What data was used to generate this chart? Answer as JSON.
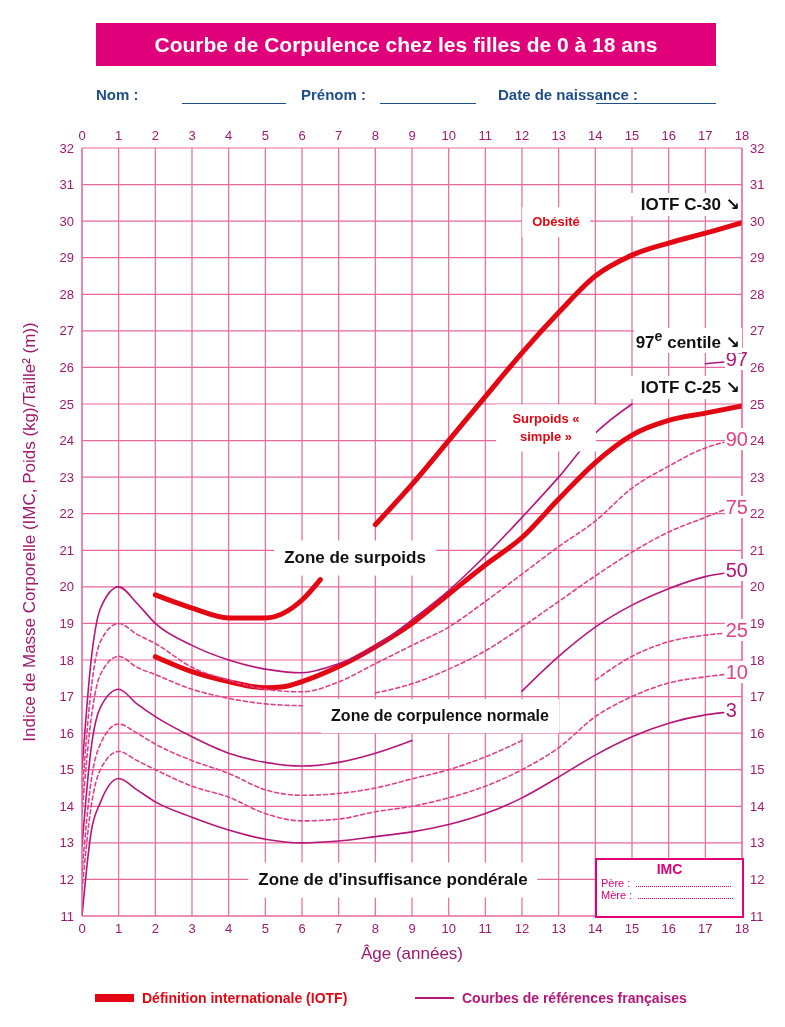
{
  "chart_data": {
    "type": "line",
    "title": "Courbe de Corpulence chez les filles de 0 à 18 ans",
    "xlabel": "Âge (années)",
    "ylabel": "Indice de Masse Corporelle  (IMC, Poids (kg)/Taille² (m))",
    "xlim": [
      0,
      18
    ],
    "xticks": [
      0,
      1,
      2,
      3,
      4,
      5,
      6,
      7,
      8,
      9,
      10,
      11,
      12,
      13,
      14,
      15,
      16,
      17,
      18
    ],
    "x2lim": [
      0,
      18
    ],
    "x2ticks": [
      0,
      1,
      2,
      3,
      4,
      5,
      6,
      7,
      8,
      9,
      10,
      11,
      12,
      13,
      14,
      15,
      16,
      17,
      18
    ],
    "ylim": [
      11,
      32
    ],
    "yticks": [
      11,
      12,
      13,
      14,
      15,
      16,
      17,
      18,
      19,
      20,
      21,
      22,
      23,
      24,
      25,
      26,
      27,
      28,
      29,
      30,
      31,
      32
    ],
    "y2lim": [
      11,
      32
    ],
    "y2ticks": [
      11,
      12,
      13,
      14,
      15,
      16,
      17,
      18,
      19,
      20,
      21,
      22,
      23,
      24,
      25,
      26,
      27,
      28,
      29,
      30,
      31,
      32
    ],
    "grid": true,
    "marker": "none",
    "series": [
      {
        "name": "IOTF C-30 ↘",
        "color": "#e30613",
        "line_style": "solid",
        "x": [
          2,
          3,
          4,
          5,
          6,
          6.5,
          7,
          8,
          9,
          10,
          11,
          12,
          13,
          14,
          15,
          16,
          17,
          18
        ],
        "values": [
          19.78,
          19.42,
          19.15,
          19.15,
          19.64,
          20.2,
          null,
          21.7,
          22.8,
          24.0,
          25.2,
          26.4,
          27.5,
          28.5,
          29.07,
          29.4,
          29.67,
          29.96
        ]
      },
      {
        "name": "IOTF C-25 ↘",
        "color": "#e30613",
        "line_style": "solid",
        "x": [
          2,
          3,
          4,
          5,
          5.5,
          6,
          7,
          8,
          9,
          10,
          11,
          12,
          13,
          14,
          15,
          16,
          17,
          18
        ],
        "values": [
          18.09,
          17.68,
          17.41,
          17.24,
          17.27,
          17.41,
          17.82,
          18.36,
          19.0,
          19.8,
          20.6,
          21.35,
          22.4,
          23.4,
          24.15,
          24.55,
          24.75,
          24.95
        ]
      },
      {
        "name": "97",
        "color": "#b5167a",
        "line_style": "solid",
        "x": [
          0,
          0.25,
          0.5,
          1,
          1.5,
          2,
          3,
          4,
          5,
          6,
          7,
          8,
          9,
          10,
          11,
          12,
          13,
          14,
          15,
          16,
          17,
          17.5
        ],
        "values": [
          15.0,
          18.0,
          19.4,
          20.0,
          19.55,
          19.0,
          18.4,
          18.0,
          17.75,
          17.65,
          17.9,
          18.36,
          19.1,
          19.9,
          20.85,
          21.9,
          23.0,
          24.2,
          25.0,
          null,
          26.1,
          26.15
        ]
      },
      {
        "name": "90",
        "color": "#e0408a",
        "line_style": "dashed",
        "x": [
          0,
          0.25,
          0.5,
          1,
          1.5,
          2,
          3,
          4,
          5,
          6,
          7,
          8,
          9,
          10,
          11,
          12,
          13,
          14,
          15,
          16,
          17,
          17.5
        ],
        "values": [
          14.3,
          17.2,
          18.5,
          19.0,
          18.7,
          18.45,
          17.8,
          17.45,
          17.2,
          17.13,
          17.4,
          17.9,
          18.4,
          18.9,
          19.6,
          20.35,
          21.1,
          21.8,
          22.7,
          23.3,
          23.8,
          23.95
        ]
      },
      {
        "name": "75",
        "color": "#e0408a",
        "line_style": "dashed",
        "x": [
          0,
          0.25,
          0.5,
          1,
          1.5,
          2,
          3,
          4,
          5,
          6,
          7,
          8,
          9,
          10,
          11,
          12,
          13,
          14,
          15,
          16,
          17,
          17.5
        ],
        "values": [
          13.8,
          16.4,
          17.6,
          18.1,
          17.8,
          17.6,
          17.2,
          16.95,
          16.8,
          16.75,
          null,
          17.1,
          17.35,
          17.75,
          18.25,
          18.9,
          19.6,
          20.3,
          20.95,
          21.5,
          21.9,
          22.1
        ]
      },
      {
        "name": "50",
        "color": "#b5167a",
        "line_style": "solid",
        "x": [
          0,
          0.25,
          0.5,
          1,
          1.5,
          2,
          3,
          4,
          5,
          6,
          7,
          8,
          9,
          10,
          11,
          12,
          13,
          14,
          15,
          16,
          17,
          17.5
        ],
        "values": [
          12.9,
          15.6,
          16.7,
          17.2,
          16.8,
          16.45,
          15.9,
          15.45,
          15.2,
          15.1,
          15.2,
          15.45,
          15.8,
          null,
          null,
          17.15,
          18.1,
          18.9,
          19.5,
          19.95,
          20.28,
          20.37
        ]
      },
      {
        "name": "25",
        "color": "#e0408a",
        "line_style": "dashed",
        "x": [
          0,
          0.25,
          0.5,
          1,
          1.5,
          2,
          3,
          4,
          5,
          6,
          7,
          8,
          9,
          10,
          11,
          12,
          13,
          14,
          15,
          16,
          17,
          17.5
        ],
        "values": [
          12.2,
          14.7,
          15.7,
          16.25,
          16.0,
          15.7,
          15.25,
          14.9,
          14.45,
          14.3,
          14.35,
          14.5,
          14.75,
          15.0,
          15.35,
          15.8,
          null,
          17.45,
          18.1,
          18.5,
          18.68,
          18.73
        ]
      },
      {
        "name": "10",
        "color": "#e0408a",
        "line_style": "dashed",
        "x": [
          0,
          0.25,
          0.5,
          1,
          1.5,
          2,
          3,
          4,
          5,
          6,
          7,
          8,
          9,
          10,
          11,
          12,
          13,
          14,
          15,
          16,
          17,
          17.5
        ],
        "values": [
          11.7,
          14.0,
          15.0,
          15.5,
          15.25,
          15.0,
          14.55,
          14.25,
          13.8,
          13.6,
          13.65,
          13.85,
          14.0,
          14.23,
          14.55,
          15.0,
          15.6,
          16.45,
          17.0,
          17.37,
          17.54,
          17.6
        ]
      },
      {
        "name": "3",
        "color": "#b5167a",
        "line_style": "solid",
        "x": [
          0,
          0.25,
          0.5,
          1,
          1.5,
          2,
          3,
          4,
          5,
          6,
          7,
          8,
          9,
          10,
          11,
          12,
          13,
          14,
          15,
          16,
          17,
          17.5
        ],
        "values": [
          11.0,
          13.3,
          14.1,
          14.76,
          14.45,
          14.12,
          13.7,
          13.35,
          13.1,
          13.0,
          13.05,
          13.17,
          13.3,
          13.5,
          13.8,
          14.23,
          14.8,
          15.4,
          15.9,
          16.27,
          16.5,
          16.56
        ]
      }
    ],
    "annotations": [
      "Nom :",
      "Prénom :",
      "Date de naissance :",
      "Obésité",
      "97$^{e}$ centile ↘",
      "Surpoids « simple »",
      "Zone de surpoids",
      "Zone de corpulence normale",
      "Zone de d'insuffisance pondérale",
      "IMC",
      "Père :",
      "Mère :",
      "Définition internationale (IOTF)",
      "Courbes de références françaises"
    ]
  }
}
